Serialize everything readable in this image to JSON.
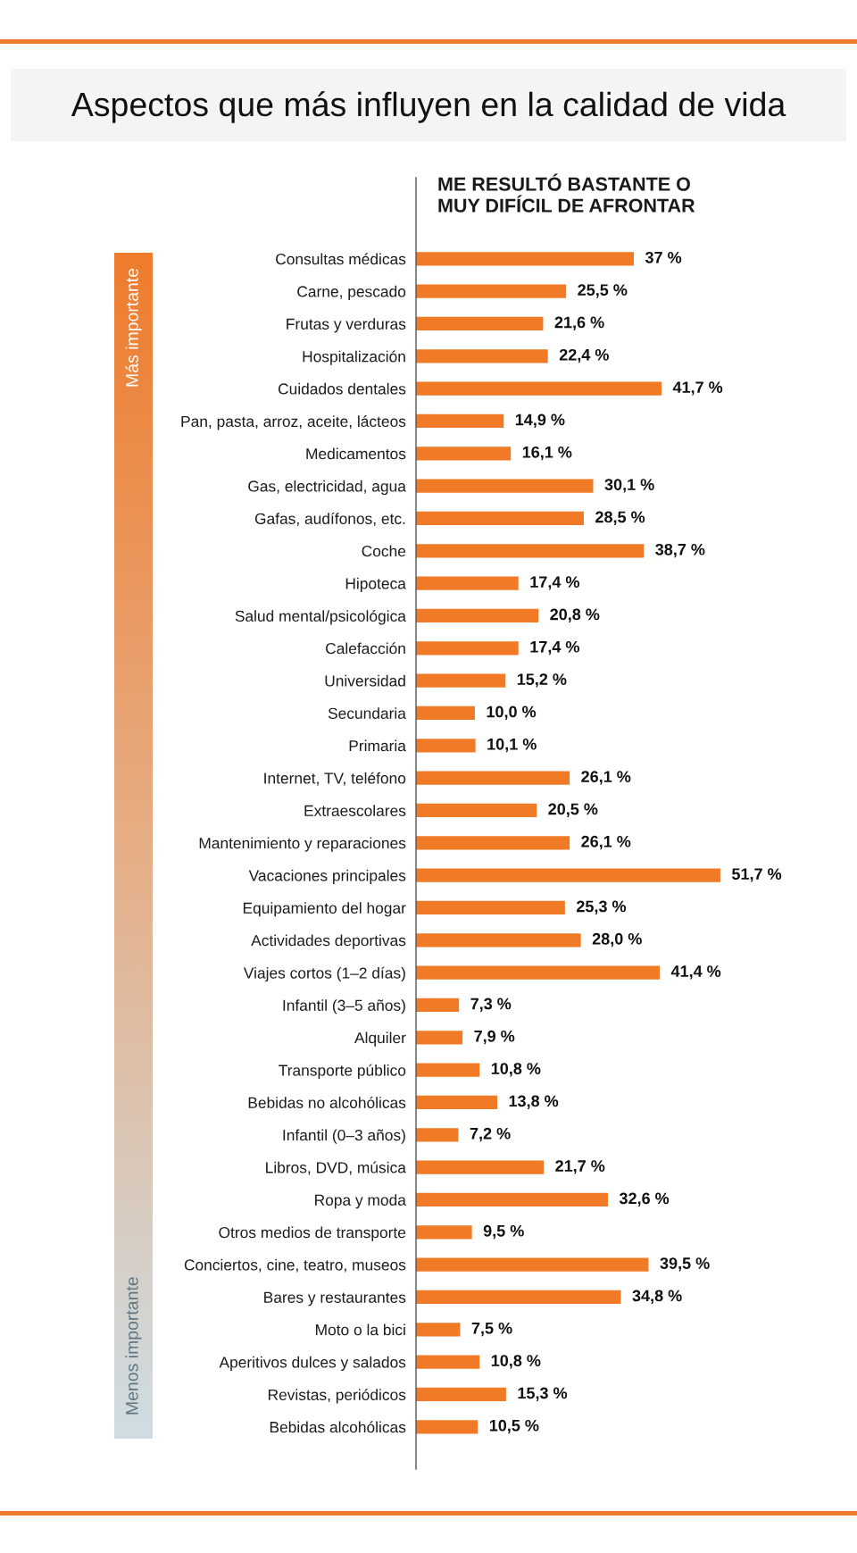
{
  "chart_data": {
    "type": "bar",
    "orientation": "horizontal",
    "title": "Aspectos que más influyen en la calidad de vida",
    "subtitle": "ME RESULTÓ BASTANTE O\nMUY DIFÍCIL DE AFRONTAR",
    "categories": [
      "Consultas médicas",
      "Carne, pescado",
      "Frutas y verduras",
      "Hospitalización",
      "Cuidados dentales",
      "Pan, pasta, arroz, aceite, lácteos",
      "Medicamentos",
      "Gas, electricidad, agua",
      "Gafas, audífonos, etc.",
      "Coche",
      "Hipoteca",
      "Salud mental/psicológica",
      "Calefacción",
      "Universidad",
      "Secundaria",
      "Primaria",
      "Internet, TV, teléfono",
      "Extraescolares",
      "Mantenimiento y reparaciones",
      "Vacaciones principales",
      "Equipamiento del hogar",
      "Actividades deportivas",
      "Viajes cortos (1–2 días)",
      "Infantil (3–5 años)",
      "Alquiler",
      "Transporte público",
      "Bebidas no alcohólicas",
      "Infantil (0–3 años)",
      "Libros, DVD, música",
      "Ropa y moda",
      "Otros medios de transporte",
      "Conciertos, cine, teatro, museos",
      "Bares y restaurantes",
      "Moto o la bici",
      "Aperitivos dulces y salados",
      "Revistas, periódicos",
      "Bebidas alcohólicas"
    ],
    "values": [
      37,
      25.5,
      21.6,
      22.4,
      41.7,
      14.9,
      16.1,
      30.1,
      28.5,
      38.7,
      17.4,
      20.8,
      17.4,
      15.2,
      10.0,
      10.1,
      26.1,
      20.5,
      26.1,
      51.7,
      25.3,
      28.0,
      41.4,
      7.3,
      7.9,
      10.8,
      13.8,
      7.2,
      21.7,
      32.6,
      9.5,
      39.5,
      34.8,
      7.5,
      10.8,
      15.3,
      10.5
    ],
    "value_labels": [
      "37 %",
      "25,5 %",
      "21,6 %",
      "22,4 %",
      "41,7 %",
      "14,9 %",
      "16,1 %",
      "30,1 %",
      "28,5 %",
      "38,7 %",
      "17,4 %",
      "20,8 %",
      "17,4 %",
      "15,2 %",
      "10,0 %",
      "10,1 %",
      "26,1 %",
      "20,5 %",
      "26,1 %",
      "51,7 %",
      "25,3 %",
      "28,0 %",
      "41,4 %",
      "7,3 %",
      "7,9 %",
      "10,8 %",
      "13,8 %",
      "7,2 %",
      "21,7 %",
      "32,6 %",
      "9,5 %",
      "39,5 %",
      "34,8 %",
      "7,5 %",
      "10,8 %",
      "15,3 %",
      "10,5 %"
    ],
    "color": "#f07a26",
    "tick_labels": "y",
    "annotations": [
      "Más importante",
      "Menos importante"
    ]
  }
}
